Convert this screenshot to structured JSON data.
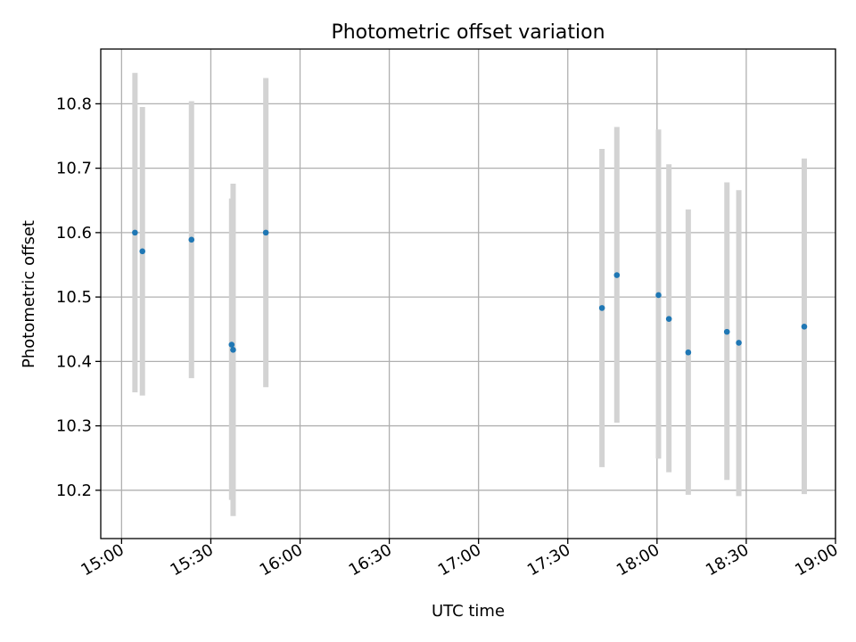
{
  "chart_data": {
    "type": "scatter",
    "title": "Photometric offset variation",
    "xlabel": "UTC time",
    "ylabel": "Photometric offset",
    "x_ticks": [
      "15:00",
      "15:30",
      "16:00",
      "16:30",
      "17:00",
      "17:30",
      "18:00",
      "18:30",
      "19:00"
    ],
    "y_ticks": [
      "10.2",
      "10.3",
      "10.4",
      "10.5",
      "10.6",
      "10.7",
      "10.8"
    ],
    "xlim": [
      "14:53",
      "19:00"
    ],
    "ylim": [
      10.125,
      10.885
    ],
    "grid": true,
    "colors": {
      "point": "#1f77b4",
      "errorbar": "#d3d3d3",
      "grid": "#b0b0b0"
    },
    "points": [
      {
        "x": "15:04:30",
        "y": 10.6,
        "ylo": 10.352,
        "yhi": 10.848
      },
      {
        "x": "15:07:00",
        "y": 10.571,
        "ylo": 10.347,
        "yhi": 10.795
      },
      {
        "x": "15:23:30",
        "y": 10.589,
        "ylo": 10.374,
        "yhi": 10.804
      },
      {
        "x": "15:37:00",
        "y": 10.426,
        "ylo": 10.185,
        "yhi": 10.653
      },
      {
        "x": "15:37:30",
        "y": 10.418,
        "ylo": 10.16,
        "yhi": 10.676
      },
      {
        "x": "15:48:30",
        "y": 10.6,
        "ylo": 10.36,
        "yhi": 10.84
      },
      {
        "x": "17:41:30",
        "y": 10.483,
        "ylo": 10.236,
        "yhi": 10.73
      },
      {
        "x": "17:46:30",
        "y": 10.534,
        "ylo": 10.305,
        "yhi": 10.764
      },
      {
        "x": "18:00:30",
        "y": 10.503,
        "ylo": 10.249,
        "yhi": 10.76
      },
      {
        "x": "18:04:00",
        "y": 10.466,
        "ylo": 10.228,
        "yhi": 10.706
      },
      {
        "x": "18:10:30",
        "y": 10.414,
        "ylo": 10.193,
        "yhi": 10.636
      },
      {
        "x": "18:23:30",
        "y": 10.446,
        "ylo": 10.216,
        "yhi": 10.678
      },
      {
        "x": "18:27:30",
        "y": 10.429,
        "ylo": 10.191,
        "yhi": 10.666
      },
      {
        "x": "18:49:30",
        "y": 10.454,
        "ylo": 10.194,
        "yhi": 10.715
      }
    ]
  }
}
